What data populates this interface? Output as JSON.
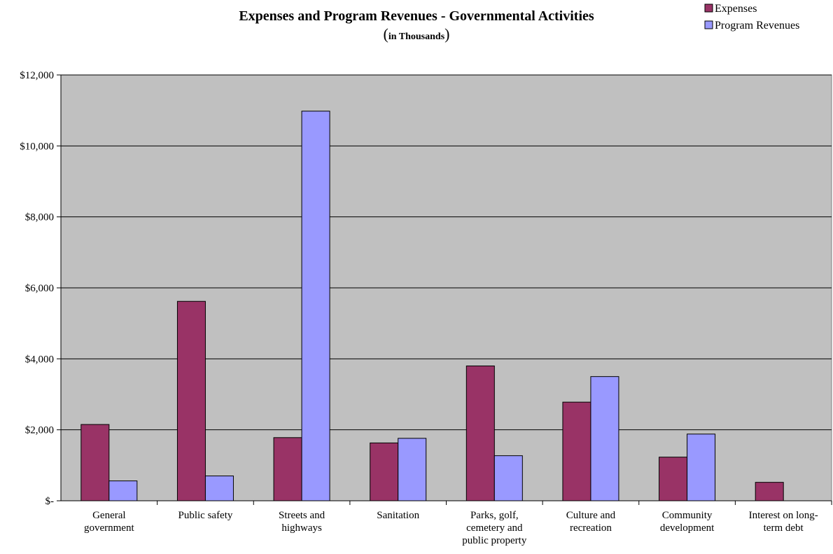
{
  "chart_data": {
    "type": "bar",
    "title": "Expenses and Program Revenues - Governmental Activities",
    "subtitle": "in Thousands",
    "xlabel": "",
    "ylabel": "",
    "ylim": [
      0,
      12000
    ],
    "yticks": [
      0,
      2000,
      4000,
      6000,
      8000,
      10000,
      12000
    ],
    "ytick_labels": [
      "$-",
      "$2,000",
      "$4,000",
      "$6,000",
      "$8,000",
      "$10,000",
      "$12,000"
    ],
    "grid": true,
    "legend_position": "top-right",
    "categories": [
      [
        "General",
        "government"
      ],
      [
        "Public safety"
      ],
      [
        "Streets and",
        "highways"
      ],
      [
        "Sanitation"
      ],
      [
        "Parks, golf,",
        "cemetery and",
        "public property"
      ],
      [
        "Culture and",
        "recreation"
      ],
      [
        "Community",
        "development"
      ],
      [
        "Interest on long-",
        "term debt"
      ]
    ],
    "series": [
      {
        "name": "Expenses",
        "color": "#993366",
        "values": [
          2150,
          5620,
          1780,
          1630,
          3800,
          2780,
          1230,
          520
        ]
      },
      {
        "name": "Program Revenues",
        "color": "#9999ff",
        "values": [
          560,
          700,
          10980,
          1760,
          1270,
          3500,
          1880,
          0
        ]
      }
    ],
    "plot_background": "#c0c0c0"
  }
}
